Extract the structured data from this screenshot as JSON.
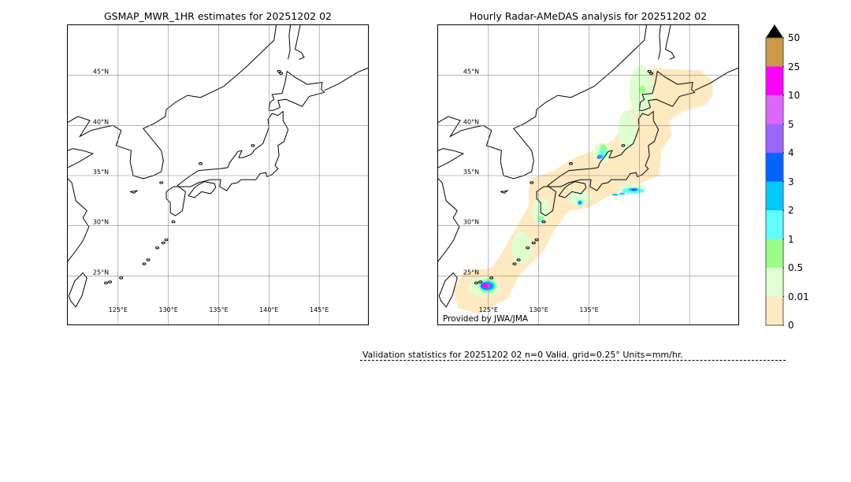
{
  "left_map": {
    "title": "GSMAP_MWR_1HR estimates for 20251202 02",
    "lat_labels": [
      "45°N",
      "40°N",
      "35°N",
      "30°N",
      "25°N"
    ],
    "lon_labels": [
      "125°E",
      "130°E",
      "135°E",
      "140°E",
      "145°E"
    ]
  },
  "right_map": {
    "title": "Hourly Radar-AMeDAS analysis for 20251202 02",
    "lat_labels": [
      "45°N",
      "40°N",
      "35°N",
      "30°N",
      "25°N"
    ],
    "lon_labels": [
      "125°E",
      "130°E",
      "135°E"
    ],
    "credit": "Provided by JWA/JMA"
  },
  "extent": {
    "lon": [
      120,
      150
    ],
    "lat": [
      20,
      50
    ]
  },
  "colorbar": {
    "labels": [
      "0",
      "0.01",
      "0.5",
      "1",
      "2",
      "3",
      "4",
      "5",
      "10",
      "25",
      "50"
    ],
    "colors": [
      "#ffe9c0",
      "#e0ffd0",
      "#99ff88",
      "#60ffff",
      "#00c8ff",
      "#0064ff",
      "#9966ff",
      "#dd66ff",
      "#ff00ff",
      "#cc9944"
    ],
    "extend_color": "#000000"
  },
  "validation": {
    "text": "Validation statistics for 20251202 02  n=0 Valid. grid=0.25° Units=mm/hr."
  }
}
